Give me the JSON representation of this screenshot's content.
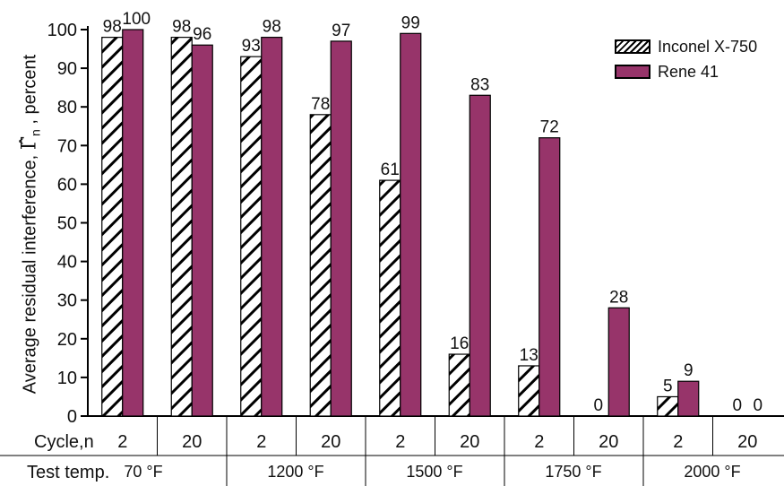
{
  "chart_data": {
    "type": "bar",
    "title": "",
    "ylabel_prefix": "Average residual interference,",
    "ylabel_symbol": "Γ̂",
    "ylabel_subscript": "n",
    "ylabel_suffix": ", percent",
    "ylim": [
      0,
      100
    ],
    "yticks": [
      "0",
      "10",
      "20",
      "30",
      "40",
      "50",
      "60",
      "70",
      "80",
      "90",
      "100"
    ],
    "row_labels": {
      "cycle": "Cycle,n",
      "temp": "Test temp."
    },
    "cycles": [
      "2",
      "20",
      "2",
      "20",
      "2",
      "20",
      "2",
      "20",
      "2",
      "20"
    ],
    "temperatures": [
      "70 °F",
      "1200 °F",
      "1500 °F",
      "1750 °F",
      "2000 °F"
    ],
    "series": [
      {
        "name": "Inconel X-750",
        "values": [
          98,
          98,
          93,
          78,
          61,
          16,
          13,
          0,
          5,
          0
        ],
        "labels": [
          "98",
          "98",
          "93",
          "78",
          "61",
          "16",
          "13",
          "0",
          "5",
          "0"
        ]
      },
      {
        "name": "Rene 41",
        "values": [
          100,
          96,
          98,
          97,
          99,
          83,
          72,
          28,
          9,
          0
        ],
        "labels": [
          "100",
          "96",
          "98",
          "97",
          "99",
          "83",
          "72",
          "28",
          "9",
          "0"
        ]
      }
    ],
    "colors": {
      "rene": "#97346a",
      "hatch": "#000000"
    },
    "legend_position": "top-right",
    "grid": false
  }
}
